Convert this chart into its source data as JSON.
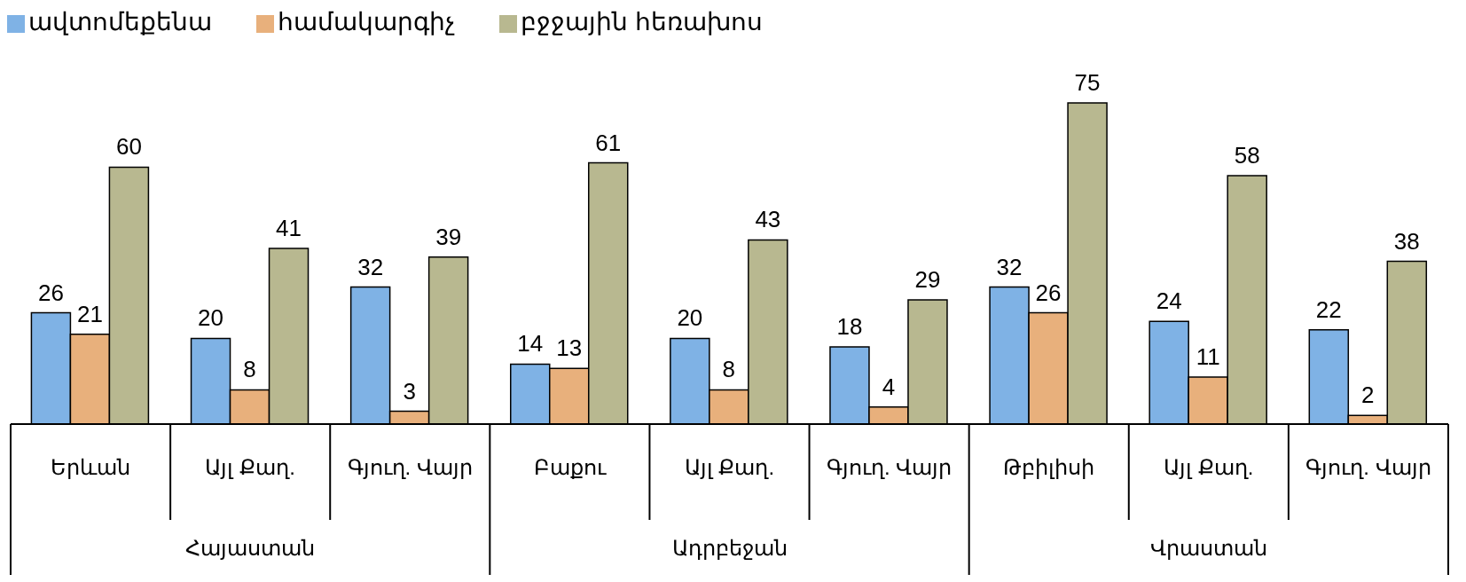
{
  "chart_data": {
    "type": "bar",
    "categories": [
      "Երևան",
      "Այլ Քաղ.",
      "Գյուղ. Վայր",
      "Բաքու",
      "Այլ Քաղ.",
      "Գյուղ. Վայր",
      "Թբիլիսի",
      "Այլ Քաղ.",
      "Գյուղ. Վայր"
    ],
    "series": [
      {
        "name": "ավտոմեքենա",
        "color": "#7fb2e5",
        "values": [
          26,
          20,
          32,
          14,
          20,
          18,
          32,
          24,
          22
        ]
      },
      {
        "name": "համակարգիչ",
        "color": "#e8b07c",
        "values": [
          21,
          8,
          3,
          13,
          8,
          4,
          26,
          11,
          2
        ]
      },
      {
        "name": "բջջային հեռախոս",
        "color": "#b8b890",
        "values": [
          60,
          41,
          39,
          61,
          43,
          29,
          75,
          58,
          38
        ]
      }
    ],
    "annotations": [
      "Հայաստան",
      "Ադրբեջան",
      "Վրաստան"
    ],
    "data_labels": true,
    "legend": "top left"
  }
}
